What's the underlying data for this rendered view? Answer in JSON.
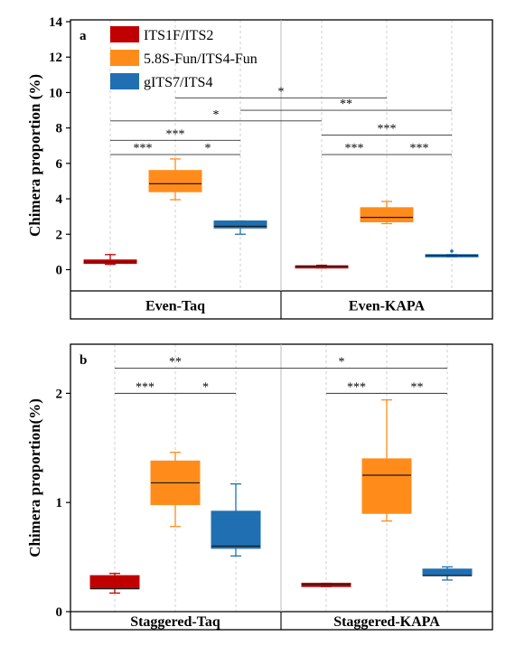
{
  "legend": {
    "placement": "top-left",
    "entries": [
      {
        "name": "ITS1F/ITS2",
        "color": "#c00000"
      },
      {
        "name": "5.8S-Fun/ITS4-Fun",
        "color": "#ff8c1a"
      },
      {
        "name": "gITS7/ITS4",
        "color": "#1f6fb2"
      }
    ]
  },
  "chart_data": [
    {
      "type": "box",
      "panel_label": "a",
      "ylabel": "Chimera proportion (%)",
      "ylim": [
        -1.2,
        14
      ],
      "yticks": [
        0,
        2,
        4,
        6,
        8,
        10,
        12,
        14
      ],
      "grid": "vertical dashed",
      "groups": [
        {
          "name": "Even-Taq",
          "boxes": [
            {
              "series": "ITS1F/ITS2",
              "min": 0.3,
              "q1": 0.35,
              "median": 0.45,
              "q3": 0.55,
              "max": 0.85
            },
            {
              "series": "5.8S-Fun/ITS4-Fun",
              "min": 3.95,
              "q1": 4.4,
              "median": 4.85,
              "q3": 5.6,
              "max": 6.25
            },
            {
              "series": "gITS7/ITS4",
              "min": 2.0,
              "q1": 2.35,
              "median": 2.45,
              "q3": 2.75,
              "max": 2.75
            }
          ]
        },
        {
          "name": "Even-KAPA",
          "boxes": [
            {
              "series": "ITS1F/ITS2",
              "min": 0.1,
              "q1": 0.18,
              "median": 0.2,
              "q3": 0.22,
              "max": 0.25
            },
            {
              "series": "5.8S-Fun/ITS4-Fun",
              "min": 2.6,
              "q1": 2.7,
              "median": 2.95,
              "q3": 3.5,
              "max": 3.85
            },
            {
              "series": "gITS7/ITS4",
              "min": 0.72,
              "q1": 0.72,
              "median": 0.8,
              "q3": 0.85,
              "max": 0.85,
              "outliers": [
                1.05
              ]
            }
          ]
        }
      ],
      "significance": [
        {
          "from": "Even-Taq:ITS1F/ITS2",
          "to": "Even-Taq:5.8S-Fun/ITS4-Fun",
          "label": "***",
          "y": 6.5
        },
        {
          "from": "Even-Taq:5.8S-Fun/ITS4-Fun",
          "to": "Even-Taq:gITS7/ITS4",
          "label": "*",
          "y": 6.5
        },
        {
          "from": "Even-Taq:ITS1F/ITS2",
          "to": "Even-Taq:gITS7/ITS4",
          "label": "***",
          "y": 7.3
        },
        {
          "from": "Even-Taq:ITS1F/ITS2",
          "to": "Even-KAPA:ITS1F/ITS2",
          "label": "*",
          "y": 8.4
        },
        {
          "from": "Even-Taq:5.8S-Fun/ITS4-Fun",
          "to": "Even-KAPA:5.8S-Fun/ITS4-Fun",
          "label": "*",
          "y": 9.7
        },
        {
          "from": "Even-Taq:gITS7/ITS4",
          "to": "Even-KAPA:gITS7/ITS4",
          "label": "**",
          "y": 9.0
        },
        {
          "from": "Even-KAPA:ITS1F/ITS2",
          "to": "Even-KAPA:gITS7/ITS4",
          "label": "***",
          "y": 7.6
        },
        {
          "from": "Even-KAPA:ITS1F/ITS2",
          "to": "Even-KAPA:5.8S-Fun/ITS4-Fun",
          "label": "***",
          "y": 6.5
        },
        {
          "from": "Even-KAPA:5.8S-Fun/ITS4-Fun",
          "to": "Even-KAPA:gITS7/ITS4",
          "label": "***",
          "y": 6.5
        }
      ]
    },
    {
      "type": "box",
      "panel_label": "b",
      "ylabel": "Chimera proportion(%)",
      "ylim": [
        0,
        2.45
      ],
      "yticks": [
        0,
        1,
        2
      ],
      "grid": "vertical dashed",
      "groups": [
        {
          "name": "Staggered-Taq",
          "boxes": [
            {
              "series": "ITS1F/ITS2",
              "min": 0.17,
              "q1": 0.21,
              "median": 0.21,
              "q3": 0.33,
              "max": 0.35
            },
            {
              "series": "5.8S-Fun/ITS4-Fun",
              "min": 0.78,
              "q1": 0.98,
              "median": 1.18,
              "q3": 1.38,
              "max": 1.46
            },
            {
              "series": "gITS7/ITS4",
              "min": 0.51,
              "q1": 0.58,
              "median": 0.6,
              "q3": 0.92,
              "max": 1.17
            }
          ]
        },
        {
          "name": "Staggered-KAPA",
          "boxes": [
            {
              "series": "ITS1F/ITS2",
              "min": 0.23,
              "q1": 0.23,
              "median": 0.25,
              "q3": 0.26,
              "max": 0.26
            },
            {
              "series": "5.8S-Fun/ITS4-Fun",
              "min": 0.83,
              "q1": 0.9,
              "median": 1.25,
              "q3": 1.4,
              "max": 1.94
            },
            {
              "series": "gITS7/ITS4",
              "min": 0.29,
              "q1": 0.33,
              "median": 0.33,
              "q3": 0.39,
              "max": 0.41
            }
          ]
        }
      ],
      "significance": [
        {
          "from": "Staggered-Taq:ITS1F/ITS2",
          "to": "Staggered-Taq:5.8S-Fun/ITS4-Fun",
          "label": "***",
          "y": 2.0
        },
        {
          "from": "Staggered-Taq:5.8S-Fun/ITS4-Fun",
          "to": "Staggered-Taq:gITS7/ITS4",
          "label": "*",
          "y": 2.0
        },
        {
          "from": "Staggered-Taq:ITS1F/ITS2",
          "to": "Staggered-Taq:gITS7/ITS4",
          "label": "**",
          "y": 2.23
        },
        {
          "from": "Staggered-Taq:gITS7/ITS4",
          "to": "Staggered-KAPA:gITS7/ITS4",
          "label": "*",
          "y": 2.23
        },
        {
          "from": "Staggered-KAPA:ITS1F/ITS2",
          "to": "Staggered-KAPA:5.8S-Fun/ITS4-Fun",
          "label": "***",
          "y": 2.0
        },
        {
          "from": "Staggered-KAPA:5.8S-Fun/ITS4-Fun",
          "to": "Staggered-KAPA:gITS7/ITS4",
          "label": "**",
          "y": 2.0
        }
      ]
    }
  ]
}
